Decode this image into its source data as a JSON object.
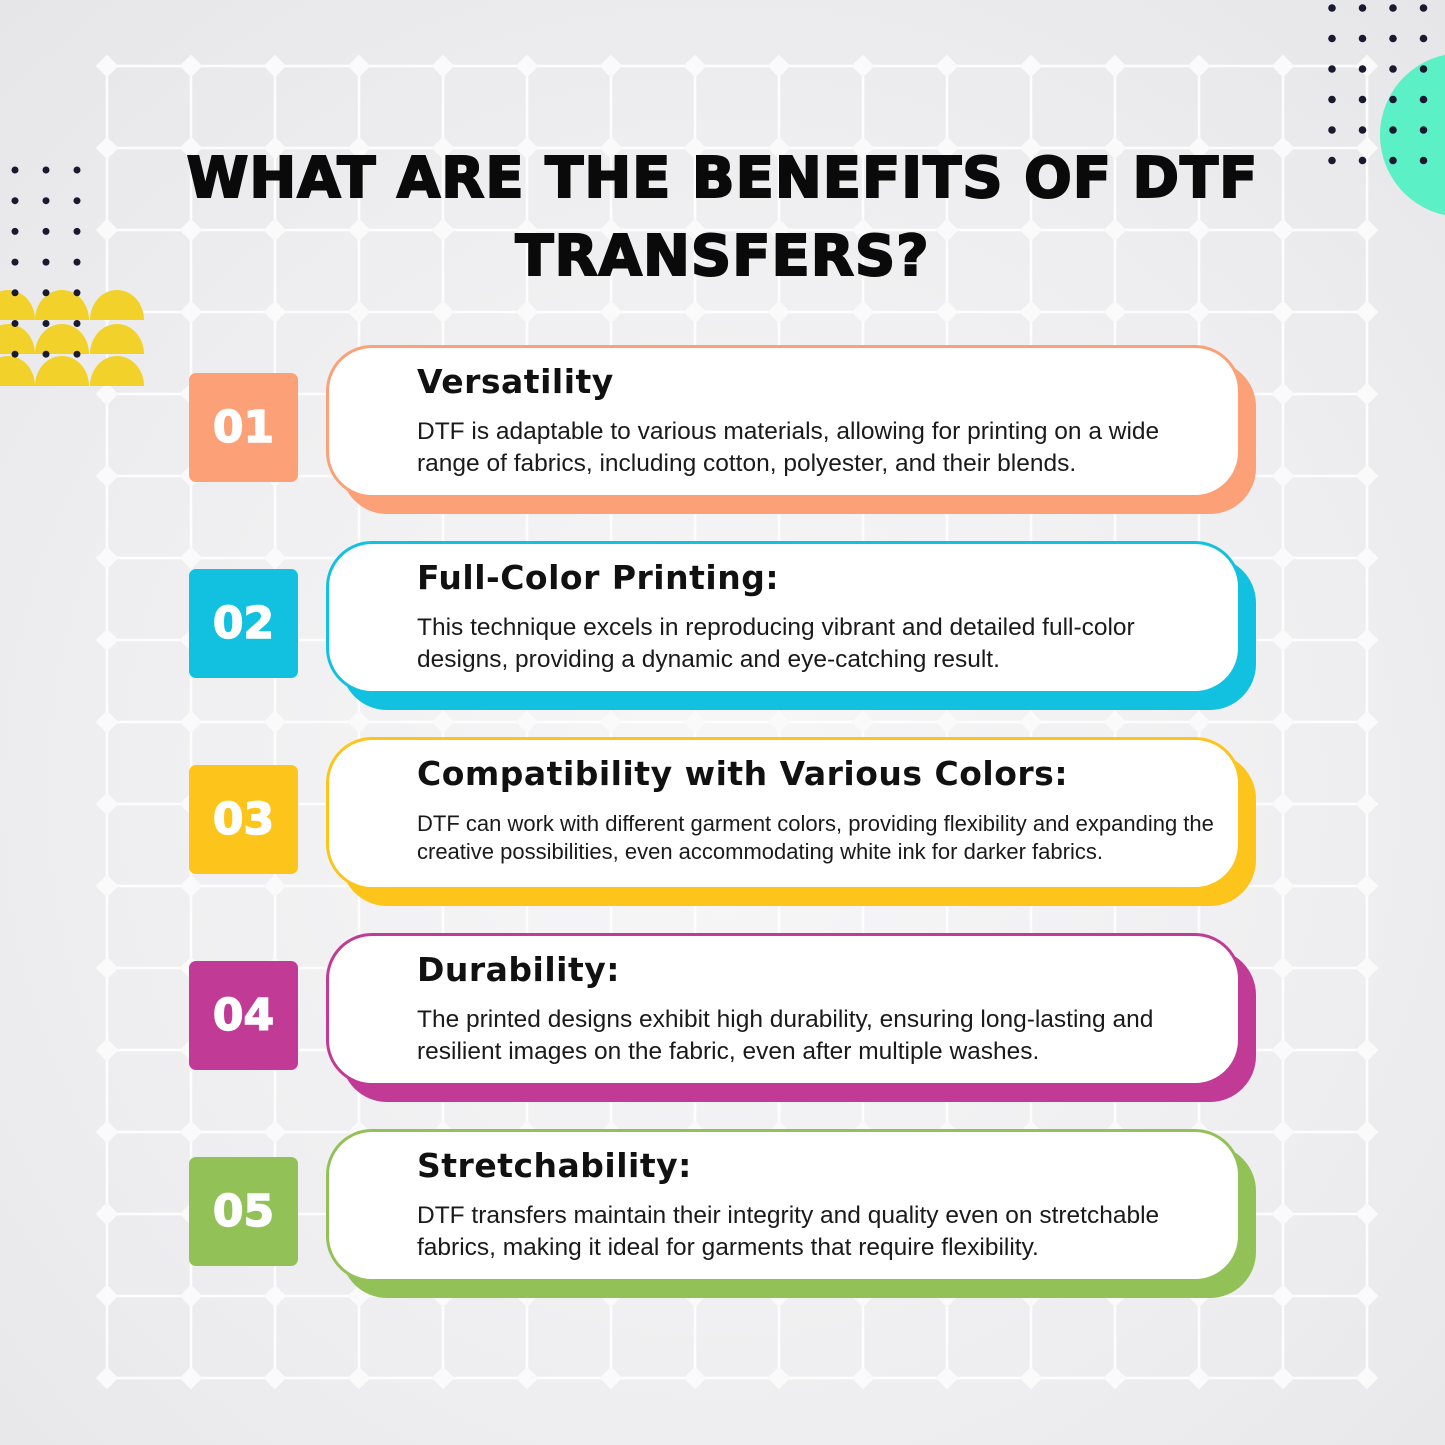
{
  "title": {
    "line1": "WHAT ARE THE BENEFITS OF DTF",
    "line2": "TRANSFERS?"
  },
  "benefits": [
    {
      "number": "01",
      "heading": "Versatility",
      "text": "DTF is adaptable to various materials, allowing for printing on a wide range of fabrics, including cotton, polyester, and their blends.",
      "color": "#fca077"
    },
    {
      "number": "02",
      "heading": "Full-Color Printing:",
      "text": "This technique excels in reproducing vibrant and detailed full-color designs, providing a dynamic and eye-catching result.",
      "color": "#12c0e0"
    },
    {
      "number": "03",
      "heading": "Compatibility with Various Colors:",
      "text": "DTF can work with different garment colors, providing flexibility and expanding the creative possibilities, even accommodating white ink for darker fabrics.",
      "color": "#fdc41c"
    },
    {
      "number": "04",
      "heading": "Durability:",
      "text": "The printed designs exhibit high durability, ensuring long-lasting and resilient images on the fabric, even after multiple washes.",
      "color": "#c13a96"
    },
    {
      "number": "05",
      "heading": "Stretchability:",
      "text": "DTF transfers maintain their integrity and quality even on stretchable fabrics, making it ideal for garments that require flexibility.",
      "color": "#92c257"
    }
  ],
  "decor": {
    "yellow": "#f2d12a",
    "teal": "#5cf0c6",
    "dots": "#1a1a2e"
  }
}
